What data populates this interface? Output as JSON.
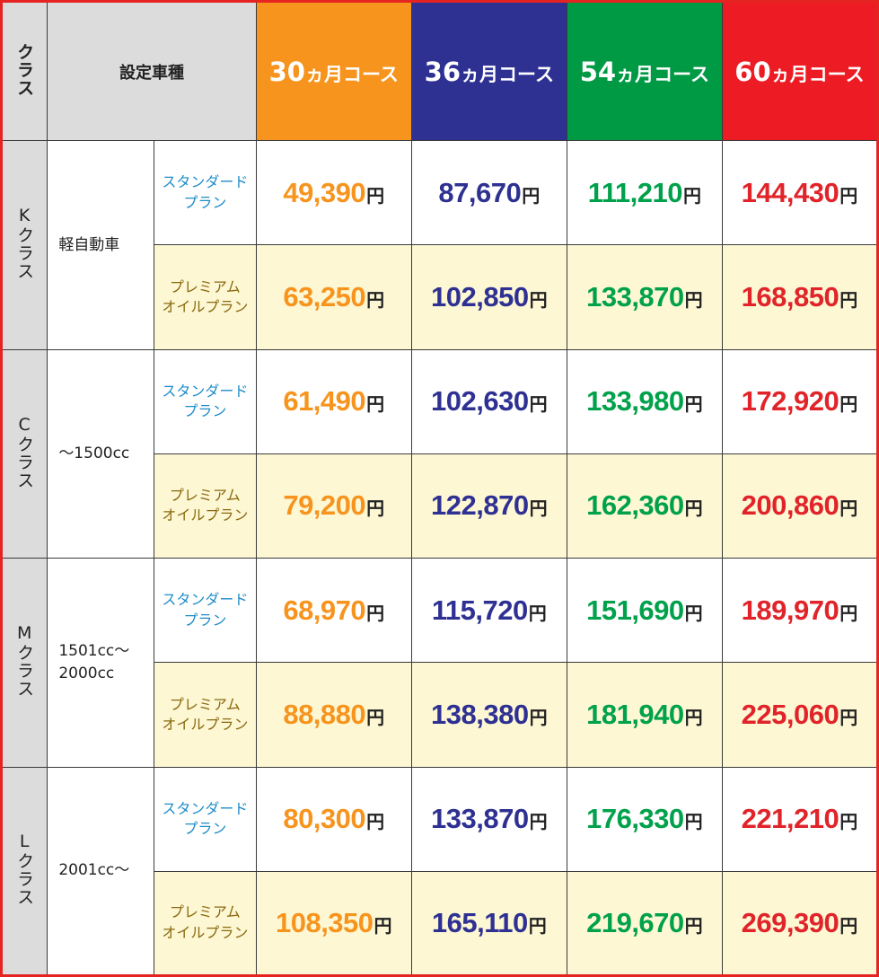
{
  "header": {
    "class_label": "クラス",
    "model_label": "設定車種",
    "courses": [
      {
        "num": "30",
        "suffix": "ヵ月コース",
        "color": "#f7941d",
        "text_color": "#f7941d"
      },
      {
        "num": "36",
        "suffix": "ヵ月コース",
        "color": "#2e3192",
        "text_color": "#2e3192"
      },
      {
        "num": "54",
        "suffix": "ヵ月コース",
        "color": "#009944",
        "text_color": "#00a14b"
      },
      {
        "num": "60",
        "suffix": "ヵ月コース",
        "color": "#ed1c24",
        "text_color": "#e0242a"
      }
    ]
  },
  "currency_unit": "円",
  "plans": {
    "standard": "スタンダード\nプラン",
    "premium": "プレミアム\nオイルプラン"
  },
  "rows": [
    {
      "class": "Kクラス",
      "car_type": "軽自動車",
      "standard": [
        "49,390",
        "87,670",
        "111,210",
        "144,430"
      ],
      "premium": [
        "63,250",
        "102,850",
        "133,870",
        "168,850"
      ]
    },
    {
      "class": "Cクラス",
      "car_type": "〜1500cc",
      "standard": [
        "61,490",
        "102,630",
        "133,980",
        "172,920"
      ],
      "premium": [
        "79,200",
        "122,870",
        "162,360",
        "200,860"
      ]
    },
    {
      "class": "Mクラス",
      "car_type": "1501cc〜\n2000cc",
      "standard": [
        "68,970",
        "115,720",
        "151,690",
        "189,970"
      ],
      "premium": [
        "88,880",
        "138,380",
        "181,940",
        "225,060"
      ]
    },
    {
      "class": "Lクラス",
      "car_type": "2001cc〜",
      "standard": [
        "80,300",
        "133,870",
        "176,330",
        "221,210"
      ],
      "premium": [
        "108,350",
        "165,110",
        "219,670",
        "269,390"
      ]
    }
  ]
}
